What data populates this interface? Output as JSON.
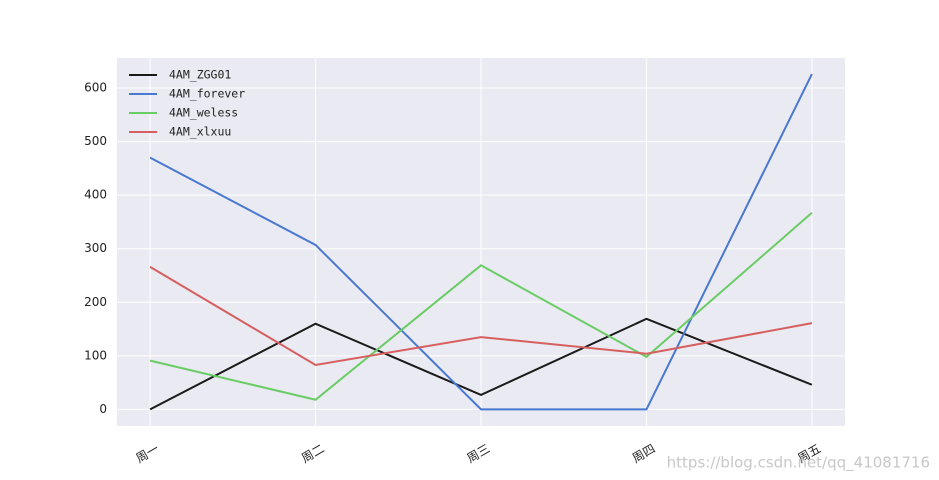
{
  "chart_data": {
    "type": "line",
    "categories": [
      "周一",
      "周二",
      "周三",
      "周四",
      "周五"
    ],
    "series": [
      {
        "name": "4AM_ZGG01",
        "color": "#1a1a1a",
        "values": [
          0,
          160,
          27,
          169,
          46
        ]
      },
      {
        "name": "4AM_forever",
        "color": "#4878cf",
        "values": [
          470,
          307,
          0,
          0,
          626
        ]
      },
      {
        "name": "4AM_weless",
        "color": "#6acc65",
        "values": [
          91,
          18,
          269,
          98,
          367
        ]
      },
      {
        "name": "4AM_xlxuu",
        "color": "#d65f5f",
        "values": [
          266,
          83,
          135,
          104,
          161
        ]
      }
    ],
    "ylim": [
      -31,
      656
    ],
    "yticks": [
      0,
      100,
      200,
      300,
      400,
      500,
      600
    ],
    "grid": true,
    "legend": "upper-left",
    "watermark": "https://blog.csdn.net/qq_41081716"
  }
}
